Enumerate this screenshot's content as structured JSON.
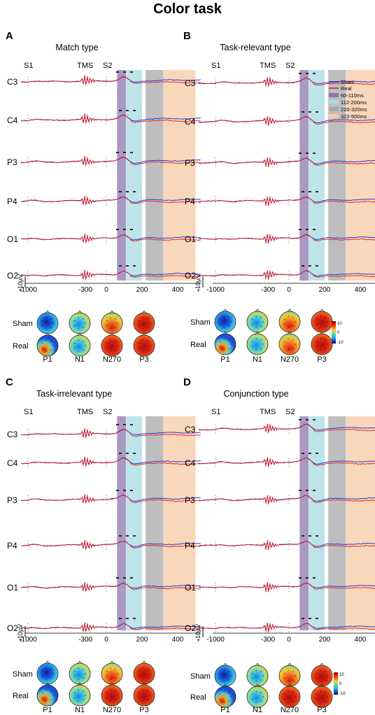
{
  "figure": {
    "title": "Color task"
  },
  "common": {
    "electrodes": [
      "C3",
      "C4",
      "P3",
      "P4",
      "O1",
      "O2"
    ],
    "events": [
      "S1",
      "TMS",
      "S2"
    ],
    "x_ticks": [
      "-1000",
      "-300",
      "0",
      "200",
      "400"
    ],
    "scale_bar_label": "10μV",
    "rows": [
      "Sham",
      "Real"
    ],
    "components": [
      "P1",
      "N1",
      "N270",
      "P3"
    ]
  },
  "legend": {
    "series": [
      {
        "name": "Sham",
        "color": "#1a2fd0"
      },
      {
        "name": "Real",
        "color": "#e0201e"
      }
    ],
    "windows": [
      {
        "name": "60-110ms",
        "color": "#8e78ad"
      },
      {
        "name": "112-200ms",
        "color": "#a7dbe0"
      },
      {
        "name": "220-320ms",
        "color": "#a8a8a8"
      },
      {
        "name": "322-500ms",
        "color": "#f6c9a4"
      }
    ]
  },
  "colorbar": {
    "max": "10",
    "mid": "0",
    "min": "-10"
  },
  "chart_data": [
    {
      "type": "line",
      "panel": "A",
      "title": "Match type",
      "x_unit": "ms",
      "x_ticks": [
        -1000,
        -300,
        0,
        200,
        400
      ],
      "event_markers": [
        {
          "label": "S1",
          "x": -1000
        },
        {
          "label": "TMS",
          "x": -300
        },
        {
          "label": "S2",
          "x": 0
        }
      ],
      "time_windows_ms": [
        [
          60,
          110
        ],
        [
          112,
          200
        ],
        [
          220,
          320
        ],
        [
          322,
          500
        ]
      ],
      "series": [
        {
          "name": "Sham"
        },
        {
          "name": "Real"
        }
      ],
      "topographies": {
        "rows": [
          "Sham",
          "Real"
        ],
        "components": [
          "P1",
          "N1",
          "N270",
          "P3"
        ]
      }
    },
    {
      "type": "line",
      "panel": "B",
      "title": "Task-relevant type",
      "x_unit": "ms",
      "x_ticks": [
        -1000,
        -300,
        0,
        200,
        400
      ],
      "event_markers": [
        {
          "label": "S1",
          "x": -1000
        },
        {
          "label": "TMS",
          "x": -300
        },
        {
          "label": "S2",
          "x": 0
        }
      ],
      "time_windows_ms": [
        [
          60,
          110
        ],
        [
          112,
          200
        ],
        [
          220,
          320
        ],
        [
          322,
          500
        ]
      ],
      "series": [
        {
          "name": "Sham"
        },
        {
          "name": "Real"
        }
      ],
      "topographies": {
        "rows": [
          "Sham",
          "Real"
        ],
        "components": [
          "P1",
          "N1",
          "N270",
          "P3"
        ]
      }
    },
    {
      "type": "line",
      "panel": "C",
      "title": "Task-irrelevant type",
      "x_unit": "ms",
      "x_ticks": [
        -1000,
        -300,
        0,
        200,
        400
      ],
      "event_markers": [
        {
          "label": "S1",
          "x": -1000
        },
        {
          "label": "TMS",
          "x": -300
        },
        {
          "label": "S2",
          "x": 0
        }
      ],
      "time_windows_ms": [
        [
          60,
          110
        ],
        [
          112,
          200
        ],
        [
          220,
          320
        ],
        [
          322,
          500
        ]
      ],
      "series": [
        {
          "name": "Sham"
        },
        {
          "name": "Real"
        }
      ],
      "topographies": {
        "rows": [
          "Sham",
          "Real"
        ],
        "components": [
          "P1",
          "N1",
          "N270",
          "P3"
        ]
      }
    },
    {
      "type": "line",
      "panel": "D",
      "title": "Conjunction type",
      "x_unit": "ms",
      "x_ticks": [
        -1000,
        -300,
        0,
        200,
        400
      ],
      "event_markers": [
        {
          "label": "S1",
          "x": -1000
        },
        {
          "label": "TMS",
          "x": -300
        },
        {
          "label": "S2",
          "x": 0
        }
      ],
      "time_windows_ms": [
        [
          60,
          110
        ],
        [
          112,
          200
        ],
        [
          220,
          320
        ],
        [
          322,
          500
        ]
      ],
      "series": [
        {
          "name": "Sham"
        },
        {
          "name": "Real"
        }
      ],
      "topographies": {
        "rows": [
          "Sham",
          "Real"
        ],
        "components": [
          "P1",
          "N1",
          "N270",
          "P3"
        ]
      }
    }
  ]
}
